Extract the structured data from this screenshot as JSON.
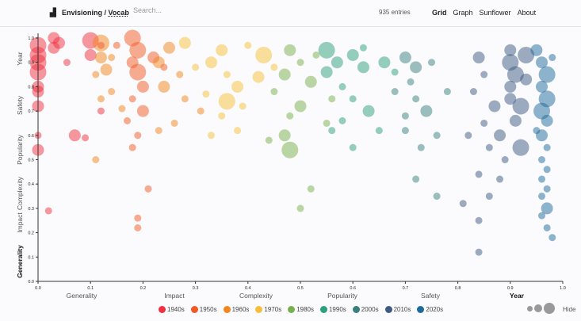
{
  "header": {
    "brand": "Envisioning /",
    "brand_link": "Vocab",
    "search_placeholder": "Search...",
    "entries": "935 entries",
    "nav": [
      "Grid",
      "Graph",
      "Sunflower",
      "About"
    ],
    "active_nav": "Grid"
  },
  "legend": {
    "decades": [
      {
        "label": "1940s",
        "color": "#f0303e"
      },
      {
        "label": "1950s",
        "color": "#f25a24"
      },
      {
        "label": "1960s",
        "color": "#f2861e"
      },
      {
        "label": "1970s",
        "color": "#f5bf3a"
      },
      {
        "label": "1980s",
        "color": "#78b04c"
      },
      {
        "label": "1990s",
        "color": "#2e9f78"
      },
      {
        "label": "2000s",
        "color": "#3a7f80"
      },
      {
        "label": "2010s",
        "color": "#3e5a82"
      },
      {
        "label": "2020s",
        "color": "#1e6a9c"
      }
    ],
    "hide_label": "Hide"
  },
  "chart_data": {
    "type": "scatter",
    "xlabel_options": [
      "Generality",
      "Impact",
      "Complexity",
      "Popularity",
      "Safety",
      "Year"
    ],
    "x_selected": "Year",
    "ylabel_options": [
      "Year",
      "Safety",
      "Popularity",
      "Complexity",
      "Impact",
      "Generality"
    ],
    "y_selected": "Generality",
    "xlim": [
      0,
      1
    ],
    "ylim": [
      0,
      1
    ],
    "xticks": [
      "0.0",
      "0.1",
      "0.2",
      "0.3",
      "0.4",
      "0.5",
      "0.6",
      "0.7",
      "0.8",
      "0.9",
      "1.0"
    ],
    "yticks": [
      "0.0",
      "0.1",
      "0.2",
      "0.3",
      "0.4",
      "0.5",
      "0.6",
      "0.7",
      "0.8",
      "0.9",
      "1.0"
    ],
    "points_format": "[x, y, size(1-3), decade_index]",
    "points": [
      [
        0,
        0.97,
        3,
        0
      ],
      [
        0,
        0.93,
        3,
        0
      ],
      [
        0,
        0.9,
        3,
        0
      ],
      [
        0,
        0.86,
        3,
        0
      ],
      [
        0,
        0.8,
        2,
        0
      ],
      [
        0,
        0.78,
        2,
        0
      ],
      [
        0,
        0.72,
        2,
        0
      ],
      [
        0,
        0.6,
        1,
        0
      ],
      [
        0,
        0.54,
        2,
        0
      ],
      [
        0.02,
        0.29,
        1,
        0
      ],
      [
        0.03,
        1.0,
        2,
        0
      ],
      [
        0.03,
        0.96,
        2,
        0
      ],
      [
        0.04,
        0.98,
        2,
        0
      ],
      [
        0.1,
        0.99,
        3,
        0
      ],
      [
        0.1,
        0.93,
        2,
        0
      ],
      [
        0.12,
        0.97,
        1,
        0
      ],
      [
        0.07,
        0.6,
        2,
        0
      ],
      [
        0.09,
        0.59,
        1,
        0
      ],
      [
        0.12,
        0.7,
        1,
        0
      ],
      [
        0.055,
        0.9,
        1,
        0
      ],
      [
        0.18,
        1.0,
        3,
        1
      ],
      [
        0.19,
        0.95,
        3,
        1
      ],
      [
        0.18,
        0.9,
        2,
        1
      ],
      [
        0.19,
        0.86,
        3,
        1
      ],
      [
        0.2,
        0.8,
        2,
        1
      ],
      [
        0.18,
        0.75,
        1,
        1
      ],
      [
        0.2,
        0.7,
        2,
        1
      ],
      [
        0.19,
        0.6,
        1,
        1
      ],
      [
        0.18,
        0.55,
        1,
        1
      ],
      [
        0.19,
        0.26,
        1,
        1
      ],
      [
        0.19,
        0.22,
        1,
        1
      ],
      [
        0.21,
        0.38,
        1,
        1
      ],
      [
        0.17,
        0.66,
        1,
        1
      ],
      [
        0.22,
        0.92,
        2,
        1
      ],
      [
        0.15,
        0.97,
        1,
        1
      ],
      [
        0.24,
        0.88,
        1,
        1
      ],
      [
        0.12,
        0.98,
        3,
        2
      ],
      [
        0.12,
        0.92,
        2,
        2
      ],
      [
        0.13,
        0.87,
        2,
        2
      ],
      [
        0.11,
        0.85,
        1,
        2
      ],
      [
        0.12,
        0.75,
        1,
        2
      ],
      [
        0.14,
        0.78,
        1,
        2
      ],
      [
        0.16,
        0.71,
        1,
        2
      ],
      [
        0.23,
        0.9,
        2,
        2
      ],
      [
        0.25,
        0.96,
        2,
        2
      ],
      [
        0.27,
        0.85,
        1,
        2
      ],
      [
        0.24,
        0.8,
        2,
        2
      ],
      [
        0.28,
        0.75,
        1,
        2
      ],
      [
        0.26,
        0.65,
        1,
        2
      ],
      [
        0.23,
        0.62,
        1,
        2
      ],
      [
        0.31,
        0.7,
        1,
        2
      ],
      [
        0.11,
        0.5,
        1,
        2
      ],
      [
        0.14,
        0.92,
        1,
        2
      ],
      [
        0.35,
        0.95,
        2,
        3
      ],
      [
        0.33,
        0.9,
        2,
        3
      ],
      [
        0.36,
        0.85,
        1,
        3
      ],
      [
        0.38,
        0.8,
        2,
        3
      ],
      [
        0.36,
        0.74,
        3,
        3
      ],
      [
        0.35,
        0.68,
        1,
        3
      ],
      [
        0.4,
        0.97,
        1,
        3
      ],
      [
        0.43,
        0.93,
        3,
        3
      ],
      [
        0.45,
        0.88,
        1,
        3
      ],
      [
        0.42,
        0.84,
        2,
        3
      ],
      [
        0.3,
        0.88,
        1,
        3
      ],
      [
        0.32,
        0.77,
        1,
        3
      ],
      [
        0.39,
        0.72,
        1,
        3
      ],
      [
        0.33,
        0.6,
        1,
        3
      ],
      [
        0.38,
        0.62,
        1,
        3
      ],
      [
        0.28,
        0.98,
        2,
        3
      ],
      [
        0.48,
        0.95,
        2,
        4
      ],
      [
        0.5,
        0.9,
        1,
        4
      ],
      [
        0.47,
        0.85,
        2,
        4
      ],
      [
        0.45,
        0.78,
        1,
        4
      ],
      [
        0.52,
        0.82,
        2,
        4
      ],
      [
        0.5,
        0.72,
        2,
        4
      ],
      [
        0.48,
        0.68,
        1,
        4
      ],
      [
        0.47,
        0.6,
        2,
        4
      ],
      [
        0.48,
        0.54,
        3,
        4
      ],
      [
        0.52,
        0.38,
        1,
        4
      ],
      [
        0.5,
        0.3,
        1,
        4
      ],
      [
        0.55,
        0.65,
        1,
        4
      ],
      [
        0.53,
        0.93,
        1,
        4
      ],
      [
        0.44,
        0.58,
        1,
        4
      ],
      [
        0.56,
        0.75,
        1,
        4
      ],
      [
        0.55,
        0.95,
        3,
        5
      ],
      [
        0.57,
        0.9,
        2,
        5
      ],
      [
        0.55,
        0.86,
        2,
        5
      ],
      [
        0.58,
        0.8,
        1,
        5
      ],
      [
        0.6,
        0.93,
        2,
        5
      ],
      [
        0.62,
        0.88,
        2,
        5
      ],
      [
        0.6,
        0.75,
        1,
        5
      ],
      [
        0.63,
        0.7,
        2,
        5
      ],
      [
        0.58,
        0.66,
        1,
        5
      ],
      [
        0.65,
        0.62,
        1,
        5
      ],
      [
        0.6,
        0.55,
        1,
        5
      ],
      [
        0.66,
        0.9,
        2,
        5
      ],
      [
        0.68,
        0.86,
        1,
        5
      ],
      [
        0.62,
        0.96,
        1,
        5
      ],
      [
        0.56,
        0.62,
        1,
        5
      ],
      [
        0.7,
        0.92,
        2,
        6
      ],
      [
        0.72,
        0.88,
        2,
        6
      ],
      [
        0.71,
        0.82,
        1,
        6
      ],
      [
        0.75,
        0.9,
        1,
        6
      ],
      [
        0.72,
        0.75,
        1,
        6
      ],
      [
        0.74,
        0.7,
        2,
        6
      ],
      [
        0.7,
        0.62,
        1,
        6
      ],
      [
        0.76,
        0.6,
        1,
        6
      ],
      [
        0.73,
        0.55,
        1,
        6
      ],
      [
        0.72,
        0.42,
        1,
        6
      ],
      [
        0.76,
        0.35,
        1,
        6
      ],
      [
        0.78,
        0.78,
        1,
        6
      ],
      [
        0.68,
        0.78,
        1,
        6
      ],
      [
        0.7,
        0.68,
        1,
        6
      ],
      [
        0.84,
        0.92,
        2,
        7
      ],
      [
        0.85,
        0.85,
        1,
        7
      ],
      [
        0.83,
        0.78,
        1,
        7
      ],
      [
        0.87,
        0.72,
        2,
        7
      ],
      [
        0.85,
        0.65,
        1,
        7
      ],
      [
        0.82,
        0.6,
        1,
        7
      ],
      [
        0.88,
        0.6,
        2,
        7
      ],
      [
        0.86,
        0.55,
        1,
        7
      ],
      [
        0.84,
        0.44,
        1,
        7
      ],
      [
        0.81,
        0.32,
        1,
        7
      ],
      [
        0.84,
        0.25,
        1,
        7
      ],
      [
        0.84,
        0.12,
        1,
        7
      ],
      [
        0.86,
        0.35,
        1,
        7
      ],
      [
        0.88,
        0.42,
        1,
        7
      ],
      [
        0.9,
        0.9,
        3,
        7
      ],
      [
        0.9,
        0.95,
        2,
        7
      ],
      [
        0.91,
        0.85,
        3,
        7
      ],
      [
        0.9,
        0.8,
        2,
        7
      ],
      [
        0.92,
        0.72,
        3,
        7
      ],
      [
        0.91,
        0.66,
        2,
        7
      ],
      [
        0.92,
        0.55,
        3,
        7
      ],
      [
        0.89,
        0.5,
        1,
        7
      ],
      [
        0.93,
        0.93,
        3,
        7
      ],
      [
        0.93,
        0.83,
        2,
        7
      ],
      [
        0.9,
        0.75,
        2,
        7
      ],
      [
        0.95,
        0.95,
        2,
        8
      ],
      [
        0.96,
        0.9,
        2,
        8
      ],
      [
        0.97,
        0.85,
        3,
        8
      ],
      [
        0.96,
        0.8,
        2,
        8
      ],
      [
        0.97,
        0.75,
        3,
        8
      ],
      [
        0.96,
        0.7,
        3,
        8
      ],
      [
        0.97,
        0.66,
        2,
        8
      ],
      [
        0.96,
        0.6,
        2,
        8
      ],
      [
        0.97,
        0.55,
        1,
        8
      ],
      [
        0.96,
        0.5,
        1,
        8
      ],
      [
        0.97,
        0.46,
        1,
        8
      ],
      [
        0.96,
        0.42,
        1,
        8
      ],
      [
        0.97,
        0.38,
        1,
        8
      ],
      [
        0.96,
        0.35,
        1,
        8
      ],
      [
        0.97,
        0.3,
        2,
        8
      ],
      [
        0.96,
        0.27,
        1,
        8
      ],
      [
        0.97,
        0.22,
        1,
        8
      ],
      [
        0.98,
        0.18,
        1,
        8
      ],
      [
        0.95,
        0.62,
        1,
        8
      ],
      [
        0.98,
        0.92,
        1,
        8
      ]
    ]
  }
}
